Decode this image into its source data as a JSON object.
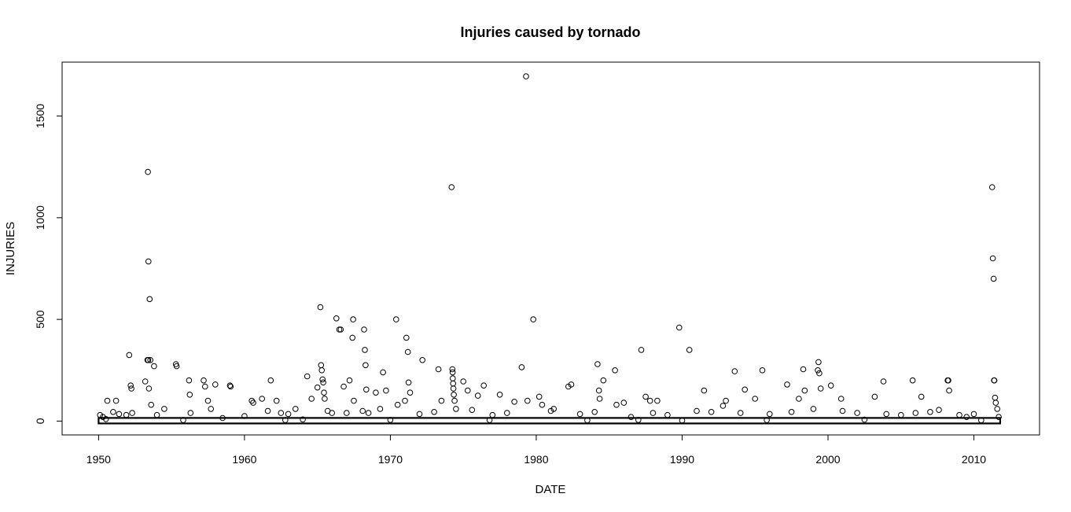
{
  "chart_data": {
    "type": "scatter",
    "title": "Injuries caused by tornado",
    "xlabel": "DATE",
    "ylabel": "INJURIES",
    "xlim": [
      1947.5,
      2014.5
    ],
    "ylim": [
      -68,
      1765
    ],
    "x_ticks": [
      1950,
      1960,
      1970,
      1980,
      1990,
      2000,
      2010
    ],
    "y_ticks": [
      0,
      500,
      1000,
      1500
    ],
    "grid": false,
    "legend": "none",
    "marker": "open-circle",
    "colors": {
      "points": "#000000",
      "axes": "#000000",
      "background": "#ffffff"
    },
    "series": [
      {
        "x": [
          1950.1,
          1950.3,
          1950.6,
          1951.2,
          1951.4,
          1951.9,
          1952.1,
          1952.2,
          1952.25,
          1952.3,
          1953.2,
          1953.35,
          1953.38,
          1953.4,
          1953.42,
          1953.45,
          1953.5,
          1953.55,
          1953.6,
          1953.8,
          1954.5,
          1955.3,
          1955.35,
          1956.2,
          1956.25,
          1956.3,
          1957.2,
          1957.3,
          1957.5,
          1957.7,
          1958.0,
          1959.0,
          1959.05,
          1960.5,
          1960.6,
          1961.2,
          1961.6,
          1961.8,
          1962.2,
          1962.5,
          1963.5,
          1964.3,
          1964.6,
          1965.0,
          1965.2,
          1965.25,
          1965.3,
          1965.35,
          1965.4,
          1965.45,
          1965.5,
          1966.0,
          1966.3,
          1966.5,
          1966.6,
          1966.8,
          1967.2,
          1967.4,
          1967.45,
          1967.5,
          1968.1,
          1968.2,
          1968.25,
          1968.3,
          1968.35,
          1968.5,
          1969.0,
          1969.5,
          1969.7,
          1970.4,
          1970.5,
          1971.0,
          1971.1,
          1971.2,
          1971.25,
          1971.35,
          1972.2,
          1973.3,
          1973.5,
          1974.2,
          1974.25,
          1974.27,
          1974.28,
          1974.3,
          1974.32,
          1974.35,
          1974.4,
          1974.5,
          1975.0,
          1975.3,
          1976.0,
          1976.4,
          1977.5,
          1978.5,
          1979.0,
          1979.3,
          1979.4,
          1979.8,
          1980.2,
          1980.4,
          1981.2,
          1982.2,
          1982.4,
          1984.0,
          1984.2,
          1984.3,
          1984.35,
          1984.6,
          1985.4,
          1985.5,
          1986.0,
          1987.2,
          1987.5,
          1987.8,
          1988.3,
          1989.8,
          1990.5,
          1991.5,
          1992.8,
          1993.0,
          1993.6,
          1994.3,
          1995.0,
          1995.5,
          1997.2,
          1998.0,
          1998.3,
          1998.4,
          1999.3,
          1999.35,
          1999.4,
          1999.5,
          2000.2,
          2000.9,
          2003.2,
          2003.8,
          2005.8,
          2006.4,
          2007.6,
          2008.2,
          2008.25,
          2008.3,
          2009.5,
          2011.25,
          2011.3,
          2011.35,
          2011.38,
          2011.4,
          2011.45,
          2011.5,
          2011.6,
          1951.0,
          1954.0,
          1958.5,
          1960.0,
          1963.0,
          1965.7,
          1967.0,
          1969.3,
          1972.0,
          1973.0,
          1975.6,
          1977.0,
          1978.0,
          1981.0,
          1983.0,
          1986.5,
          1988.0,
          1989.0,
          1991.0,
          1992.0,
          1994.0,
          1996.0,
          1997.5,
          1999.0,
          2001.0,
          2002.0,
          2004.0,
          2005.0,
          2006.0,
          2007.0,
          2009.0,
          2010.0,
          2011.7,
          1950.5,
          1955.8,
          1962.8,
          1964.0,
          1970.0,
          1976.8,
          1983.5,
          1987.0,
          1990.0,
          1995.8,
          2002.5,
          2010.5
        ],
        "y": [
          30,
          20,
          100,
          100,
          35,
          30,
          325,
          175,
          160,
          40,
          195,
          300,
          1225,
          300,
          785,
          160,
          600,
          300,
          80,
          270,
          60,
          280,
          270,
          200,
          130,
          40,
          200,
          170,
          100,
          60,
          180,
          175,
          170,
          100,
          90,
          110,
          50,
          200,
          100,
          40,
          60,
          220,
          110,
          165,
          560,
          275,
          250,
          205,
          190,
          140,
          110,
          40,
          505,
          450,
          450,
          170,
          200,
          410,
          500,
          100,
          50,
          450,
          350,
          275,
          155,
          40,
          140,
          240,
          150,
          500,
          80,
          100,
          410,
          340,
          190,
          140,
          300,
          255,
          100,
          1150,
          255,
          240,
          210,
          185,
          160,
          130,
          100,
          60,
          195,
          150,
          125,
          175,
          130,
          95,
          265,
          1695,
          100,
          500,
          120,
          80,
          60,
          170,
          180,
          45,
          280,
          150,
          110,
          200,
          250,
          80,
          90,
          350,
          120,
          100,
          100,
          460,
          350,
          150,
          75,
          100,
          245,
          155,
          110,
          250,
          180,
          110,
          255,
          150,
          250,
          290,
          235,
          160,
          175,
          110,
          120,
          195,
          200,
          120,
          55,
          200,
          200,
          150,
          20,
          1150,
          800,
          700,
          200,
          200,
          115,
          90,
          60,
          45,
          30,
          15,
          25,
          35,
          50,
          40,
          60,
          35,
          45,
          55,
          30,
          40,
          50,
          35,
          20,
          40,
          30,
          50,
          45,
          40,
          35,
          45,
          60,
          50,
          40,
          35,
          30,
          40,
          45,
          30,
          35,
          20,
          10,
          5,
          5,
          8,
          6,
          5,
          4,
          6,
          3,
          5,
          7,
          4
        ]
      }
    ]
  }
}
